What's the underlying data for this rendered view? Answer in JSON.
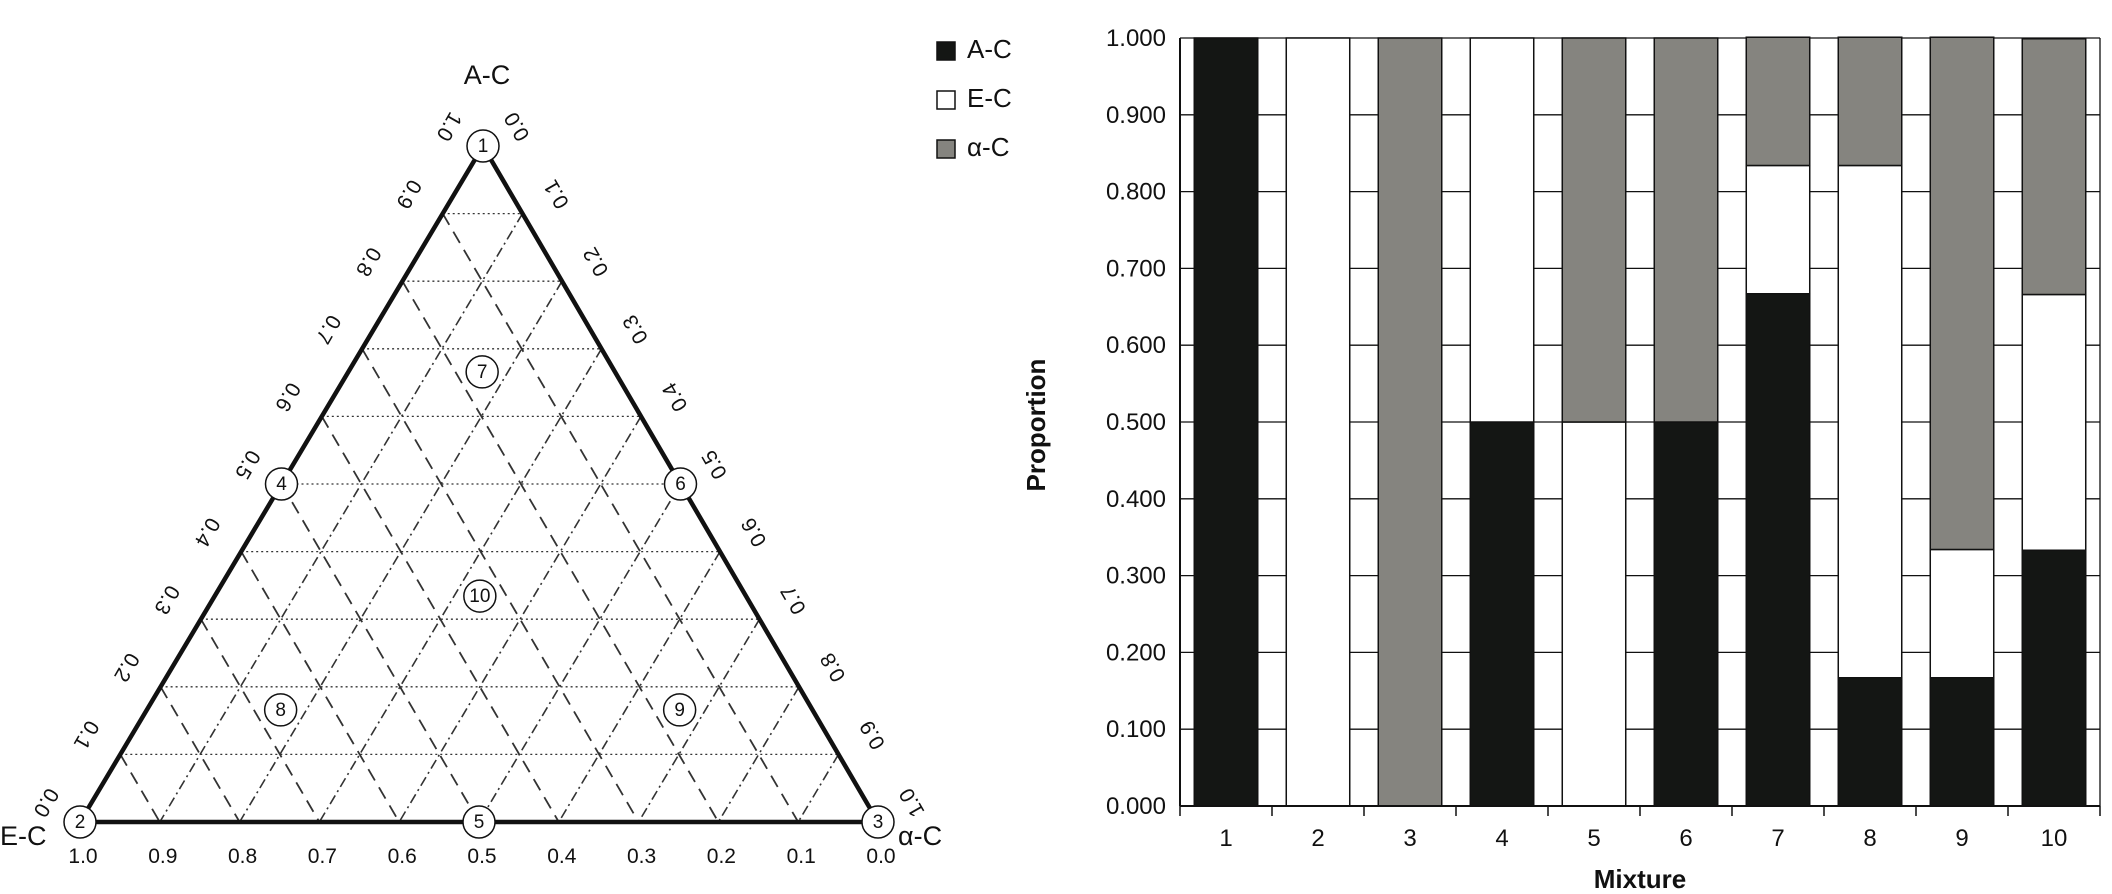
{
  "chart_data": [
    {
      "type": "scatter",
      "subtype": "ternary",
      "vertices": {
        "top": "A-C",
        "left": "E-C",
        "right": "α-C"
      },
      "gridlines": [
        0.1,
        0.2,
        0.3,
        0.4,
        0.5,
        0.6,
        0.7,
        0.8,
        0.9
      ],
      "left_edge_ticks": [
        "0.0",
        "0.1",
        "0.2",
        "0.3",
        "0.4",
        "0.5",
        "0.6",
        "0.7",
        "0.8",
        "0.9",
        "1.0"
      ],
      "right_edge_ticks": [
        "0.0",
        "0.1",
        "0.2",
        "0.3",
        "0.4",
        "0.5",
        "0.6",
        "0.7",
        "0.8",
        "0.9",
        "1.0"
      ],
      "bottom_edge_ticks": [
        "1.0",
        "0.9",
        "0.8",
        "0.7",
        "0.6",
        "0.5",
        "0.4",
        "0.3",
        "0.2",
        "0.1",
        "0.0"
      ],
      "points": [
        {
          "label": "1",
          "a": 1.0,
          "e": 0.0,
          "alpha": 0.0
        },
        {
          "label": "2",
          "a": 0.0,
          "e": 1.0,
          "alpha": 0.0
        },
        {
          "label": "3",
          "a": 0.0,
          "e": 0.0,
          "alpha": 1.0
        },
        {
          "label": "4",
          "a": 0.5,
          "e": 0.5,
          "alpha": 0.0
        },
        {
          "label": "5",
          "a": 0.0,
          "e": 0.5,
          "alpha": 0.5
        },
        {
          "label": "6",
          "a": 0.5,
          "e": 0.0,
          "alpha": 0.5
        },
        {
          "label": "7",
          "a": 0.667,
          "e": 0.167,
          "alpha": 0.167
        },
        {
          "label": "8",
          "a": 0.167,
          "e": 0.667,
          "alpha": 0.167
        },
        {
          "label": "9",
          "a": 0.167,
          "e": 0.167,
          "alpha": 0.667
        },
        {
          "label": "10",
          "a": 0.333,
          "e": 0.333,
          "alpha": 0.333
        }
      ]
    },
    {
      "type": "bar",
      "stacked": true,
      "xlabel": "Mixture",
      "ylabel": "Proportion",
      "categories": [
        "1",
        "2",
        "3",
        "4",
        "5",
        "6",
        "7",
        "8",
        "9",
        "10"
      ],
      "ylim": [
        0,
        1
      ],
      "yticks": [
        "0.000",
        "0.100",
        "0.200",
        "0.300",
        "0.400",
        "0.500",
        "0.600",
        "0.700",
        "0.800",
        "0.900",
        "1.000"
      ],
      "grid": true,
      "legend_position": "top-left",
      "series": [
        {
          "name": "A-C",
          "color": "#141614",
          "values": [
            1.0,
            0.0,
            0.0,
            0.5,
            0.0,
            0.5,
            0.667,
            0.167,
            0.167,
            0.333
          ]
        },
        {
          "name": "E-C",
          "color": "#ffffff",
          "values": [
            0.0,
            1.0,
            0.0,
            0.5,
            0.5,
            0.0,
            0.167,
            0.667,
            0.167,
            0.333
          ]
        },
        {
          "name": "α-C",
          "color": "#85847f",
          "values": [
            0.0,
            0.0,
            1.0,
            0.0,
            0.5,
            0.5,
            0.167,
            0.167,
            0.667,
            0.333
          ]
        }
      ]
    }
  ]
}
